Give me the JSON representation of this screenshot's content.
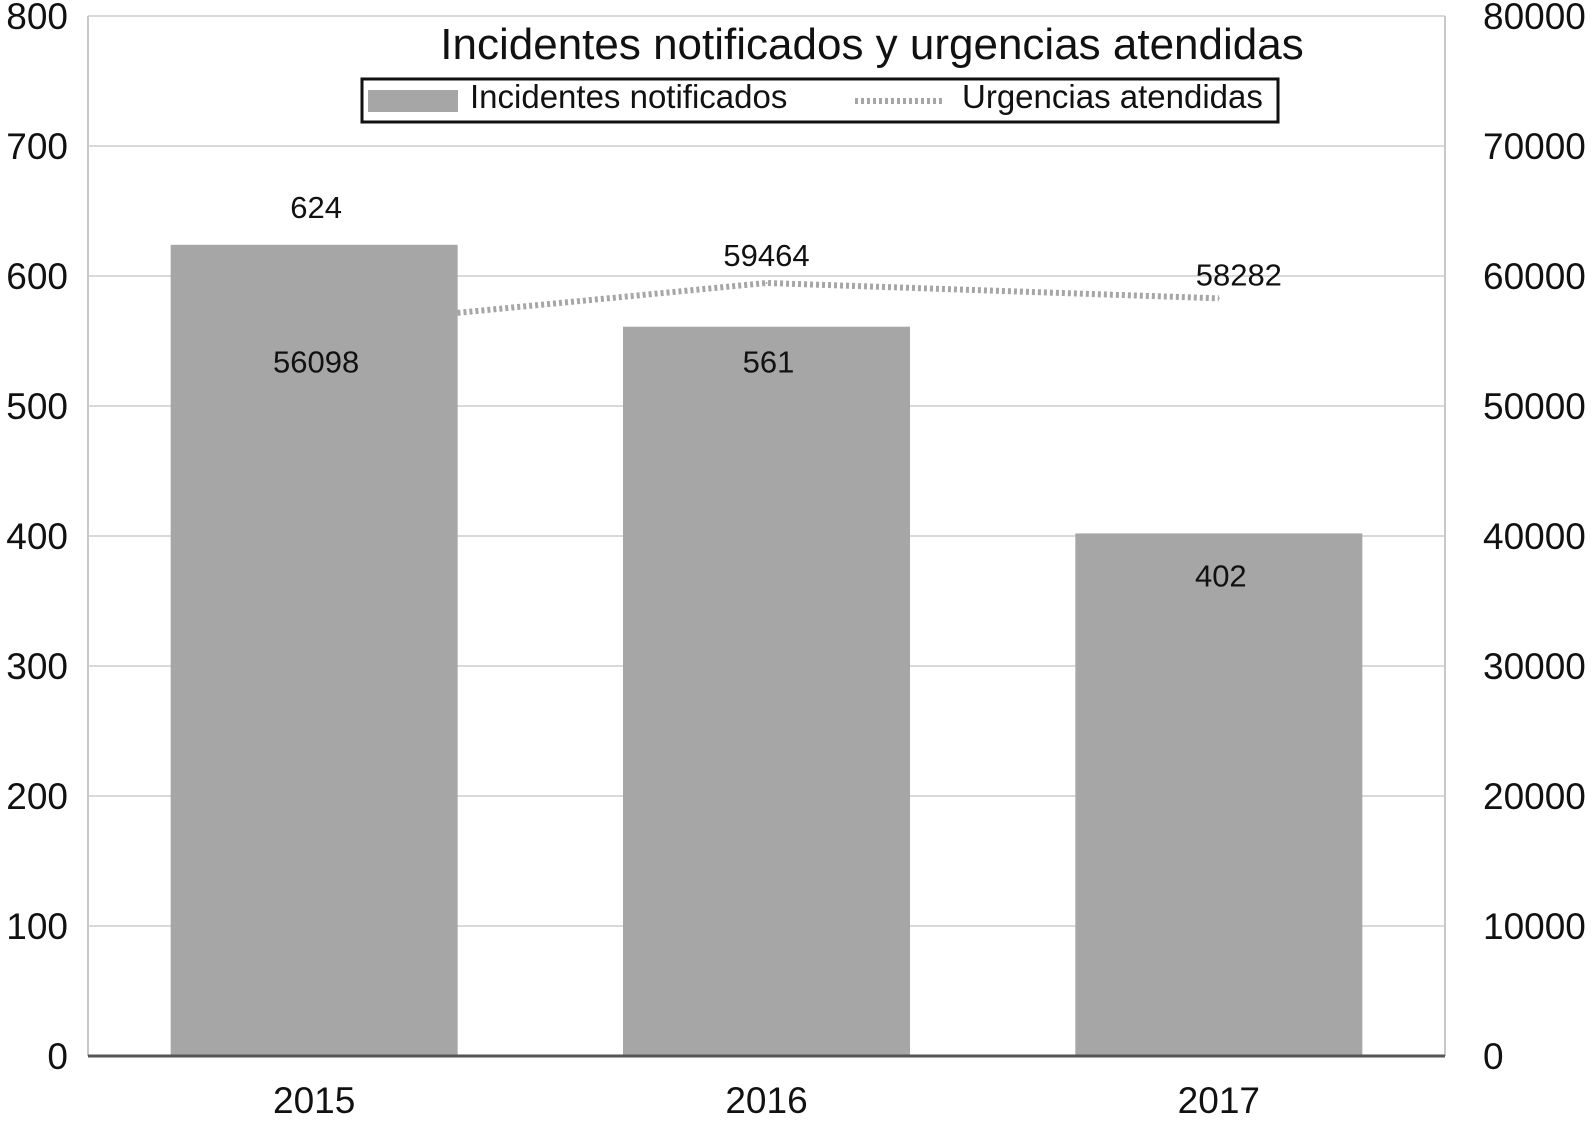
{
  "chart_data": {
    "type": "bar",
    "title": "Incidentes notificados y urgencias atendidas",
    "categories": [
      "2015",
      "2016",
      "2017"
    ],
    "series": [
      {
        "name": "Incidentes notificados",
        "kind": "bar",
        "axis": "left",
        "values": [
          624,
          561,
          402
        ],
        "color": "#a6a6a6"
      },
      {
        "name": "Urgencias atendidas",
        "kind": "line",
        "style": "dotted",
        "axis": "right",
        "values": [
          56098,
          59464,
          58282
        ],
        "color": "#a6a6a6"
      }
    ],
    "y_left": {
      "range": [
        0,
        800
      ],
      "ticks": [
        "0",
        "100",
        "200",
        "300",
        "400",
        "500",
        "600",
        "700",
        "800"
      ]
    },
    "y_right": {
      "range": [
        0,
        80000
      ],
      "ticks": [
        "0",
        "10000",
        "20000",
        "30000",
        "40000",
        "50000",
        "60000",
        "70000",
        "80000"
      ]
    },
    "grid": true,
    "legend": "top-center"
  }
}
